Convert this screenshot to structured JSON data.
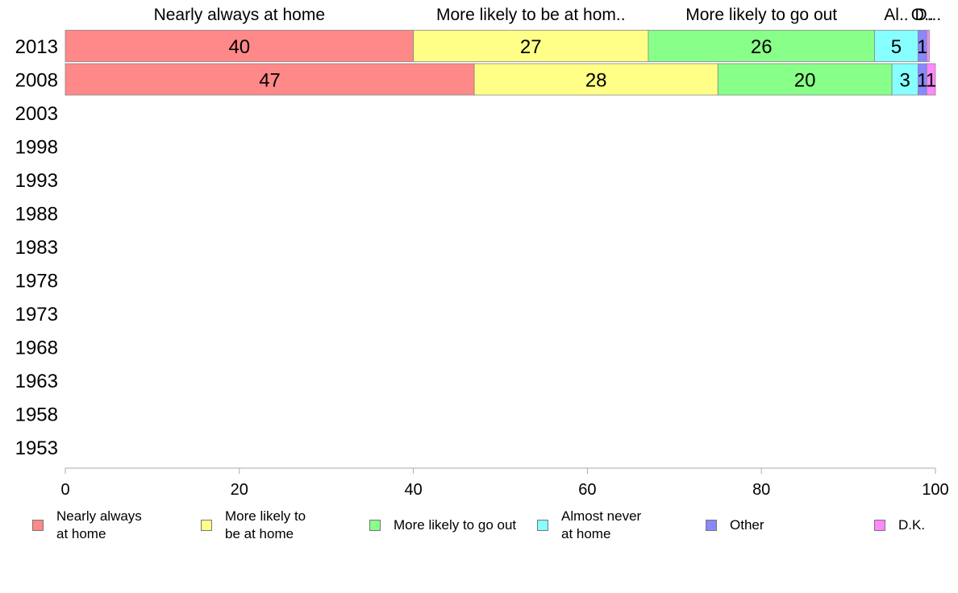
{
  "chart_data": {
    "type": "bar",
    "orientation": "horizontal",
    "stacked": true,
    "categories": [
      "2013",
      "2008",
      "2003",
      "1998",
      "1993",
      "1988",
      "1983",
      "1978",
      "1973",
      "1968",
      "1963",
      "1958",
      "1953"
    ],
    "series": [
      {
        "name": "Nearly always at home",
        "top_label": "Nearly always at home",
        "color": "#ff8888",
        "values": [
          40,
          47,
          null,
          null,
          null,
          null,
          null,
          null,
          null,
          null,
          null,
          null,
          null
        ],
        "labels": [
          "40",
          "47"
        ]
      },
      {
        "name": "More likely to be at home",
        "top_label": "More likely to be at hom..",
        "color": "#ffff88",
        "values": [
          27,
          28,
          null,
          null,
          null,
          null,
          null,
          null,
          null,
          null,
          null,
          null,
          null
        ],
        "labels": [
          "27",
          "28"
        ]
      },
      {
        "name": "More likely to go out",
        "top_label": "More likely to go out",
        "color": "#88ff88",
        "values": [
          26,
          20,
          null,
          null,
          null,
          null,
          null,
          null,
          null,
          null,
          null,
          null,
          null
        ],
        "labels": [
          "26",
          "20"
        ]
      },
      {
        "name": "Almost never at home",
        "top_label": "Al..",
        "color": "#88ffff",
        "values": [
          5,
          3,
          null,
          null,
          null,
          null,
          null,
          null,
          null,
          null,
          null,
          null,
          null
        ],
        "labels": [
          "5",
          "3"
        ]
      },
      {
        "name": "Other",
        "top_label": "O..",
        "color": "#8888ff",
        "values": [
          1,
          1,
          null,
          null,
          null,
          null,
          null,
          null,
          null,
          null,
          null,
          null,
          null
        ],
        "labels": [
          "1",
          "1"
        ]
      },
      {
        "name": "D.K.",
        "top_label": "D...",
        "color": "#ff88ff",
        "values": [
          0.3,
          1,
          null,
          null,
          null,
          null,
          null,
          null,
          null,
          null,
          null,
          null,
          null
        ],
        "labels": [
          "",
          "1"
        ]
      }
    ],
    "xlim": [
      0,
      100
    ],
    "xticks": [
      "0",
      "20",
      "40",
      "60",
      "80",
      "100"
    ],
    "grid": false,
    "legend_position": "bottom"
  },
  "legend": [
    {
      "line1": "Nearly always",
      "line2": "at home"
    },
    {
      "line1": "More likely to",
      "line2": "be at home"
    },
    {
      "line1": "More likely to go out",
      "line2": ""
    },
    {
      "line1": "Almost never",
      "line2": "at home"
    },
    {
      "line1": "Other",
      "line2": ""
    },
    {
      "line1": "D.K.",
      "line2": ""
    }
  ]
}
